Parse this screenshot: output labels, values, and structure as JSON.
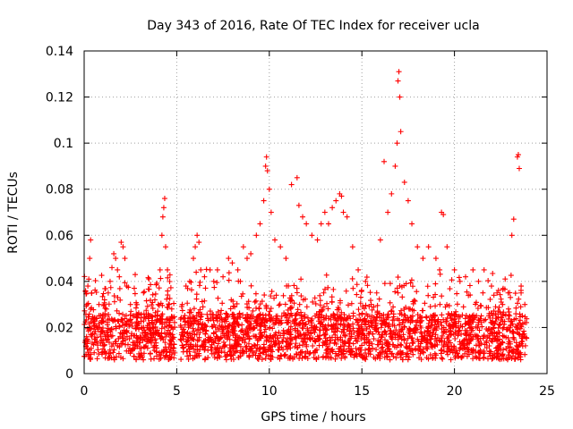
{
  "chart_data": {
    "type": "scatter",
    "title": "Day 343 of 2016, Rate Of TEC Index for receiver ucla",
    "xlabel": "GPS time / hours",
    "ylabel": "ROTI / TECUs",
    "xlim": [
      0,
      25
    ],
    "ylim": [
      0,
      0.14
    ],
    "xticks": [
      "0",
      "5",
      "10",
      "15",
      "20",
      "25"
    ],
    "yticks": [
      "0",
      "0.02",
      "0.04",
      "0.06",
      "0.08",
      "0.1",
      "0.12",
      "0.14"
    ],
    "grid": true,
    "marker": "+",
    "color": "#ff0000",
    "series": [
      {
        "values_note_points": [
          [
            0.1,
            0.012
          ],
          [
            0.15,
            0.03
          ],
          [
            0.2,
            0.038
          ],
          [
            0.25,
            0.041
          ],
          [
            0.3,
            0.05
          ],
          [
            0.35,
            0.058
          ],
          [
            0.4,
            0.035
          ],
          [
            0.5,
            0.022
          ],
          [
            0.6,
            0.015
          ],
          [
            0.7,
            0.02
          ],
          [
            0.8,
            0.03
          ],
          [
            0.9,
            0.018
          ],
          [
            1.0,
            0.025
          ],
          [
            1.1,
            0.032
          ],
          [
            1.2,
            0.028
          ],
          [
            1.3,
            0.035
          ],
          [
            1.4,
            0.04
          ],
          [
            1.5,
            0.046
          ],
          [
            1.6,
            0.052
          ],
          [
            1.7,
            0.05
          ],
          [
            1.8,
            0.045
          ],
          [
            1.9,
            0.042
          ],
          [
            2.0,
            0.057
          ],
          [
            2.1,
            0.055
          ],
          [
            2.2,
            0.05
          ],
          [
            2.3,
            0.038
          ],
          [
            2.5,
            0.03
          ],
          [
            2.7,
            0.025
          ],
          [
            2.9,
            0.022
          ],
          [
            3.1,
            0.02
          ],
          [
            3.3,
            0.018
          ],
          [
            3.5,
            0.022
          ],
          [
            3.7,
            0.02
          ],
          [
            3.9,
            0.018
          ],
          [
            4.0,
            0.03
          ],
          [
            4.1,
            0.045
          ],
          [
            4.2,
            0.06
          ],
          [
            4.25,
            0.068
          ],
          [
            4.3,
            0.072
          ],
          [
            4.35,
            0.076
          ],
          [
            4.4,
            0.055
          ],
          [
            4.5,
            0.045
          ],
          [
            4.6,
            0.03
          ],
          [
            4.7,
            0.02
          ],
          [
            4.8,
            0.015
          ],
          [
            5.3,
            0.03
          ],
          [
            5.5,
            0.038
          ],
          [
            5.7,
            0.04
          ],
          [
            5.9,
            0.05
          ],
          [
            6.0,
            0.055
          ],
          [
            6.1,
            0.06
          ],
          [
            6.2,
            0.057
          ],
          [
            6.3,
            0.045
          ],
          [
            6.5,
            0.042
          ],
          [
            6.8,
            0.045
          ],
          [
            7.0,
            0.04
          ],
          [
            7.2,
            0.045
          ],
          [
            7.5,
            0.042
          ],
          [
            7.8,
            0.05
          ],
          [
            8.0,
            0.048
          ],
          [
            8.3,
            0.045
          ],
          [
            8.6,
            0.055
          ],
          [
            8.8,
            0.05
          ],
          [
            9.0,
            0.052
          ],
          [
            9.3,
            0.06
          ],
          [
            9.5,
            0.065
          ],
          [
            9.7,
            0.075
          ],
          [
            9.8,
            0.09
          ],
          [
            9.85,
            0.094
          ],
          [
            9.9,
            0.088
          ],
          [
            10.0,
            0.08
          ],
          [
            10.1,
            0.07
          ],
          [
            10.3,
            0.058
          ],
          [
            10.6,
            0.055
          ],
          [
            10.9,
            0.05
          ],
          [
            11.2,
            0.082
          ],
          [
            11.5,
            0.085
          ],
          [
            11.6,
            0.073
          ],
          [
            11.8,
            0.068
          ],
          [
            12.0,
            0.065
          ],
          [
            12.3,
            0.06
          ],
          [
            12.6,
            0.058
          ],
          [
            12.8,
            0.065
          ],
          [
            13.0,
            0.07
          ],
          [
            13.2,
            0.065
          ],
          [
            13.4,
            0.072
          ],
          [
            13.6,
            0.075
          ],
          [
            13.8,
            0.078
          ],
          [
            13.9,
            0.077
          ],
          [
            14.0,
            0.07
          ],
          [
            14.2,
            0.068
          ],
          [
            14.5,
            0.055
          ],
          [
            14.8,
            0.045
          ],
          [
            15.2,
            0.04
          ],
          [
            15.5,
            0.03
          ],
          [
            15.8,
            0.035
          ],
          [
            16.0,
            0.058
          ],
          [
            16.2,
            0.092
          ],
          [
            16.4,
            0.07
          ],
          [
            16.6,
            0.078
          ],
          [
            16.8,
            0.09
          ],
          [
            16.9,
            0.1
          ],
          [
            16.95,
            0.127
          ],
          [
            17.0,
            0.131
          ],
          [
            17.05,
            0.12
          ],
          [
            17.1,
            0.105
          ],
          [
            17.3,
            0.083
          ],
          [
            17.5,
            0.075
          ],
          [
            17.7,
            0.065
          ],
          [
            18.0,
            0.055
          ],
          [
            18.3,
            0.05
          ],
          [
            18.6,
            0.055
          ],
          [
            19.0,
            0.05
          ],
          [
            19.2,
            0.045
          ],
          [
            19.3,
            0.07
          ],
          [
            19.4,
            0.069
          ],
          [
            19.6,
            0.055
          ],
          [
            20.0,
            0.045
          ],
          [
            20.3,
            0.04
          ],
          [
            20.6,
            0.042
          ],
          [
            21.0,
            0.045
          ],
          [
            21.3,
            0.04
          ],
          [
            21.6,
            0.045
          ],
          [
            22.0,
            0.038
          ],
          [
            22.3,
            0.035
          ],
          [
            22.6,
            0.03
          ],
          [
            22.9,
            0.035
          ],
          [
            23.1,
            0.06
          ],
          [
            23.2,
            0.067
          ],
          [
            23.4,
            0.094
          ],
          [
            23.45,
            0.095
          ],
          [
            23.5,
            0.089
          ],
          [
            23.6,
            0.035
          ],
          [
            23.8,
            0.03
          ]
        ],
        "values": []
      }
    ]
  }
}
